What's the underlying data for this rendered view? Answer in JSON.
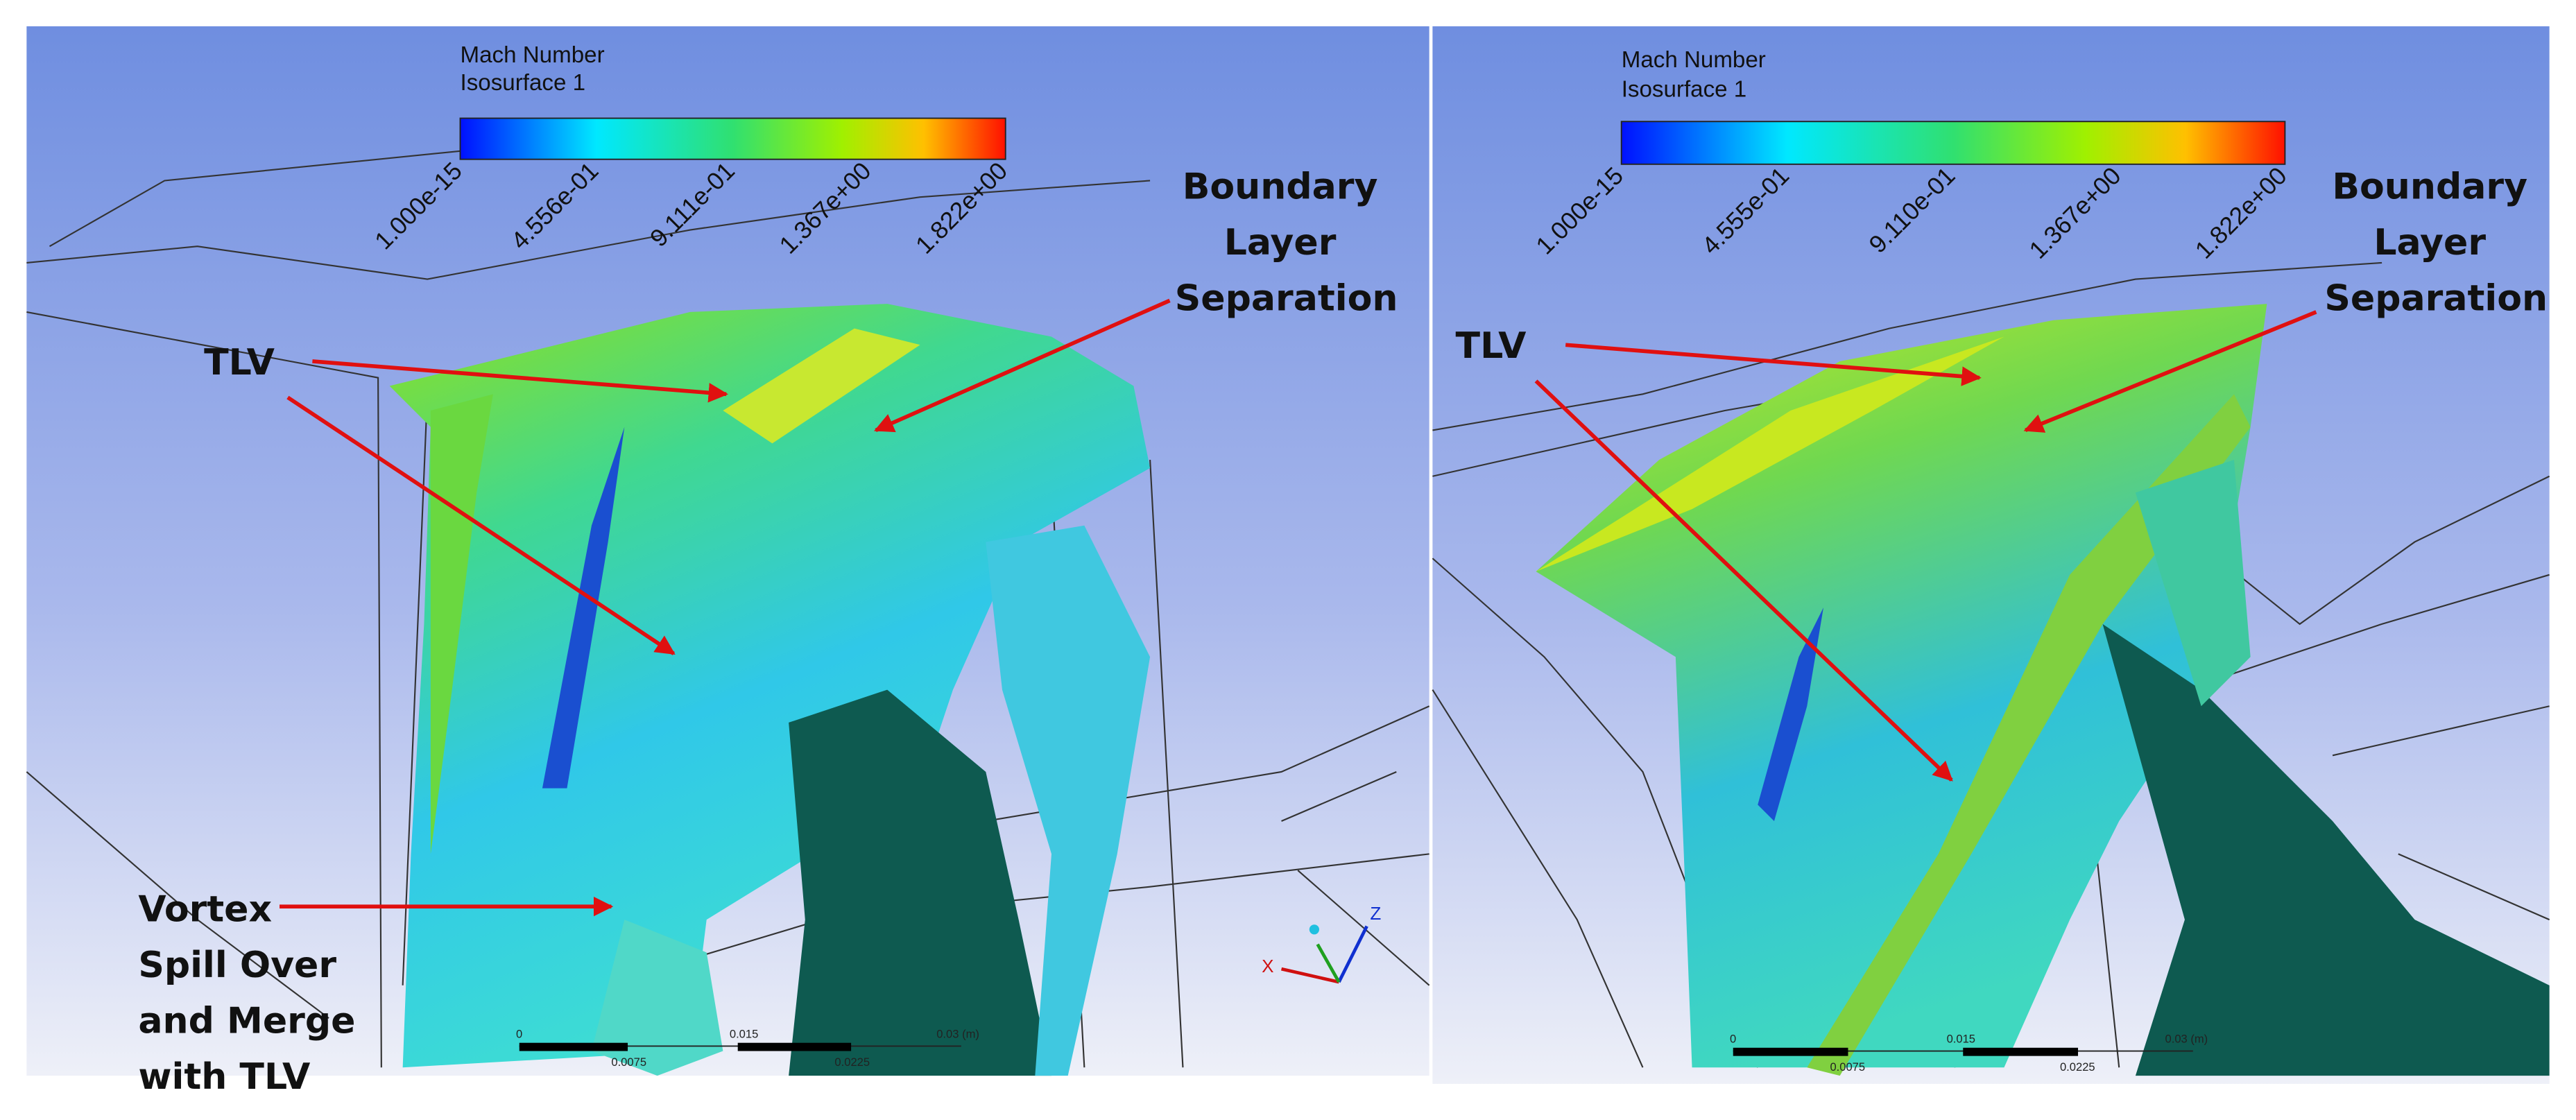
{
  "panels": [
    {
      "legend": {
        "title": "Mach Number",
        "subtitle": "Isosurface 1",
        "ticks": [
          "1.000e-15",
          "4.556e-01",
          "9.111e-01",
          "1.367e+00",
          "1.822e+00"
        ]
      },
      "annotations": [
        {
          "lines": [
            "TLV"
          ]
        },
        {
          "lines": [
            "Boundary",
            "Layer",
            "Separation"
          ]
        },
        {
          "lines": [
            "Vortex",
            "Spill Over",
            "and Merge",
            "with TLV"
          ]
        }
      ],
      "scale_bar": {
        "top_labels": [
          "0",
          "0.015",
          "0.03 (m)"
        ],
        "bottom_labels": [
          "0.0075",
          "0.0225"
        ]
      },
      "axes": [
        "X",
        "Z"
      ]
    },
    {
      "legend": {
        "title": "Mach Number",
        "subtitle": "Isosurface 1",
        "ticks": [
          "1.000e-15",
          "4.555e-01",
          "9.110e-01",
          "1.367e+00",
          "1.822e+00"
        ]
      },
      "annotations": [
        {
          "lines": [
            "TLV"
          ]
        },
        {
          "lines": [
            "Boundary",
            "Layer",
            "Separation"
          ]
        }
      ],
      "scale_bar": {
        "top_labels": [
          "0",
          "0.015",
          "0.03 (m)"
        ],
        "bottom_labels": [
          "0.0075",
          "0.0225"
        ]
      }
    }
  ]
}
